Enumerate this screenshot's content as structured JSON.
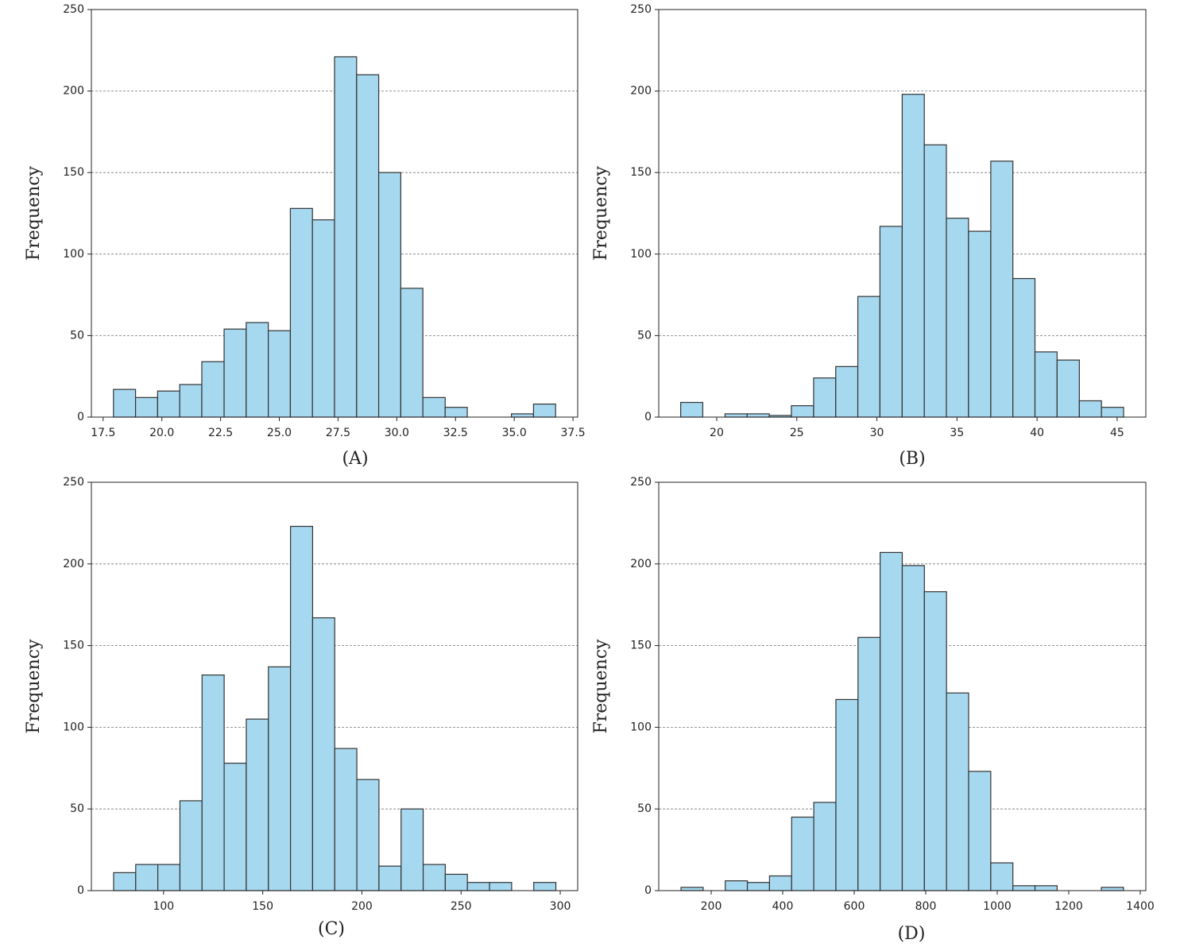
{
  "chart_data": [
    {
      "type": "histogram",
      "ylabel": "Frequency",
      "caption": "(A)",
      "color": "#a6d8ef",
      "edgecolor": "#333333",
      "grid": true,
      "bins": [
        17.94,
        18.88,
        19.82,
        20.76,
        21.7,
        22.65,
        23.59,
        24.53,
        25.47,
        26.41,
        27.35,
        28.29,
        29.23,
        30.17,
        31.11,
        32.06,
        33.0,
        33.94,
        34.88,
        35.82,
        36.76
      ],
      "values": [
        17,
        12,
        16,
        20,
        34,
        54,
        58,
        53,
        128,
        121,
        221,
        210,
        150,
        79,
        12,
        6,
        0,
        0,
        2,
        8
      ],
      "xlim": [
        17.0,
        37.7
      ],
      "xticks": [
        17.5,
        {
          "value": 20,
          "label": "20.0"
        },
        22.5,
        {
          "value": 25,
          "label": "25.0"
        },
        27.5,
        {
          "value": 30,
          "label": "30.0"
        },
        32.5,
        {
          "value": 35,
          "label": "35.0"
        },
        37.5
      ],
      "ylim": [
        0,
        250
      ],
      "yticks": [
        0,
        50,
        100,
        150,
        200,
        250
      ]
    },
    {
      "type": "histogram",
      "ylabel": "Frequency",
      "caption": "(B)",
      "color": "#a6d8ef",
      "edgecolor": "#333333",
      "grid": true,
      "bins": [
        17.75,
        19.13,
        20.52,
        21.9,
        23.28,
        24.66,
        26.05,
        27.43,
        28.81,
        30.19,
        31.58,
        32.96,
        34.34,
        35.72,
        37.11,
        38.49,
        39.87,
        41.25,
        42.64,
        44.02,
        45.4
      ],
      "values": [
        9,
        0,
        2,
        2,
        1,
        7,
        24,
        31,
        74,
        117,
        198,
        167,
        122,
        114,
        157,
        85,
        40,
        35,
        10,
        6
      ],
      "xlim": [
        16.38,
        46.79
      ],
      "xticks": [
        20,
        25,
        30,
        35,
        40,
        45
      ],
      "ylim": [
        0,
        250
      ],
      "yticks": [
        0,
        50,
        100,
        150,
        200,
        250
      ]
    },
    {
      "type": "histogram",
      "ylabel": "Frequency",
      "caption": "(C)",
      "color": "#a6d8ef",
      "edgecolor": "#333333",
      "grid": true,
      "bins": [
        74.8,
        85.95,
        97.1,
        108.25,
        119.4,
        130.55,
        141.7,
        152.85,
        164.0,
        175.15,
        186.3,
        197.45,
        208.6,
        219.75,
        230.9,
        242.05,
        253.2,
        264.35,
        275.5,
        286.65,
        297.8
      ],
      "values": [
        11,
        16,
        16,
        55,
        132,
        78,
        105,
        137,
        223,
        167,
        87,
        68,
        15,
        50,
        16,
        10,
        5,
        5,
        0,
        5
      ],
      "xlim": [
        63.6,
        308.8
      ],
      "xticks": [
        100,
        150,
        200,
        250,
        300
      ],
      "ylim": [
        0,
        250
      ],
      "yticks": [
        0,
        50,
        100,
        150,
        200,
        250
      ]
    },
    {
      "type": "histogram",
      "ylabel": "Frequency",
      "caption": "(D)",
      "color": "#a6d8ef",
      "edgecolor": "#333333",
      "grid": true,
      "bins": [
        115.6,
        177.5,
        239.4,
        301.2,
        363.1,
        425.0,
        486.9,
        548.8,
        610.6,
        672.5,
        734.4,
        796.3,
        858.2,
        920.0,
        981.9,
        1043.8,
        1105.7,
        1167.6,
        1229.4,
        1291.3,
        1353.2
      ],
      "values": [
        2,
        0,
        6,
        5,
        9,
        45,
        54,
        117,
        155,
        207,
        199,
        183,
        121,
        73,
        17,
        3,
        3,
        0,
        0,
        2
      ],
      "xlim": [
        53.3,
        1415.6
      ],
      "xticks": [
        200,
        400,
        600,
        800,
        1000,
        1200,
        1400
      ],
      "ylim": [
        0,
        250
      ],
      "yticks": [
        0,
        50,
        100,
        150,
        200,
        250
      ]
    }
  ]
}
